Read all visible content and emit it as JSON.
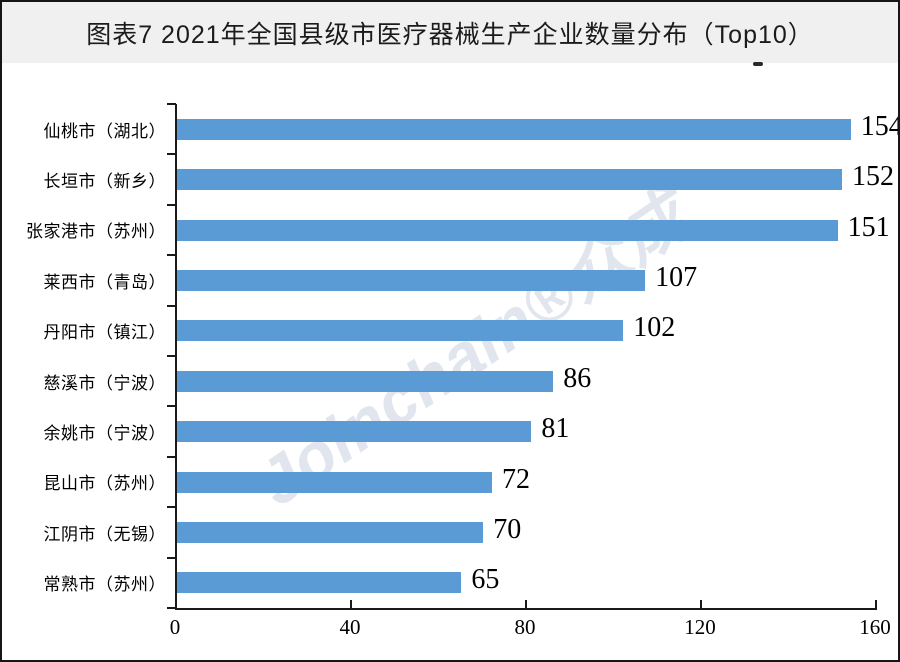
{
  "header": {
    "title": "图表7  2021年全国县级市医疗器械生产企业数量分布（Top10）"
  },
  "watermark": {
    "text": "Joinchain®众成"
  },
  "colors": {
    "bar": "#5B9BD5",
    "title_bg": "#f0f0f0",
    "axis": "#1a1a1a",
    "watermark": "#dce1ea",
    "value_label": "#000000"
  },
  "chart_data": {
    "type": "bar",
    "orientation": "horizontal",
    "title": "图表7  2021年全国县级市医疗器械生产企业数量分布（Top10）",
    "categories": [
      "仙桃市（湖北）",
      "长垣市（新乡）",
      "张家港市（苏州）",
      "莱西市（青岛）",
      "丹阳市（镇江）",
      "慈溪市（宁波）",
      "余姚市（宁波）",
      "昆山市（苏州）",
      "江阴市（无锡）",
      "常熟市（苏州）"
    ],
    "values": [
      154,
      152,
      151,
      107,
      102,
      86,
      81,
      72,
      70,
      65
    ],
    "value_labels_shown": true,
    "xlabel": "",
    "ylabel": "",
    "xlim": [
      0,
      160
    ],
    "x_ticks": [
      0,
      40,
      80,
      120,
      160
    ],
    "grid": false,
    "legend": "none"
  }
}
